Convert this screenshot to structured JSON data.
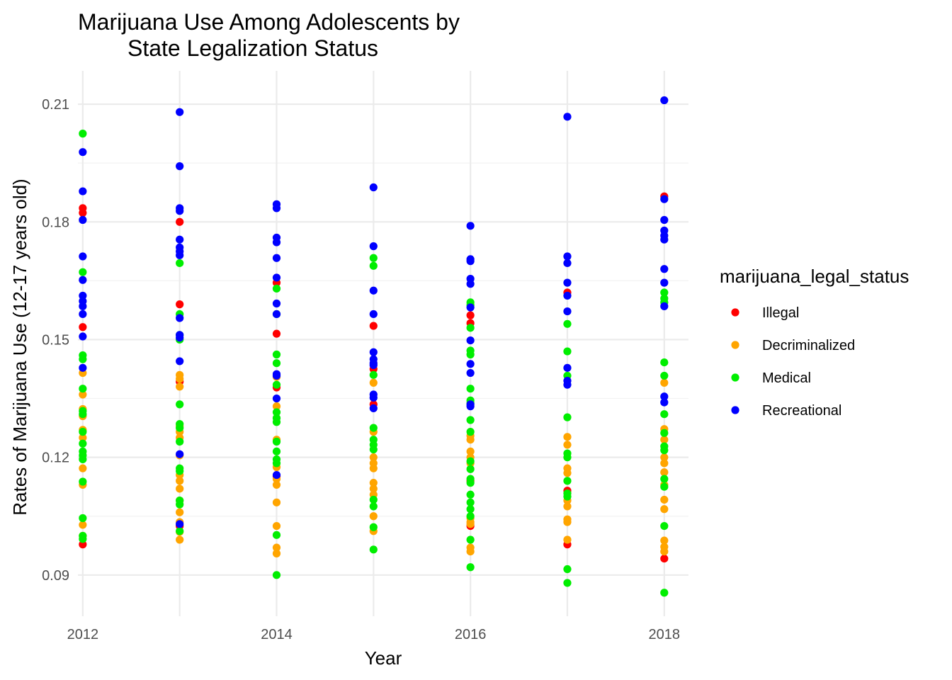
{
  "chart_data": {
    "type": "scatter",
    "title": "Marijuana Use Among Adolescents by\nState Legalization Status",
    "xlabel": "Year",
    "ylabel": "Rates of Marijuana Use (12-17 years old)",
    "xlim": [
      2011.95,
      2018.25
    ],
    "ylim": [
      0.0795,
      0.2185
    ],
    "x_ticks": [
      2012,
      2014,
      2016,
      2018
    ],
    "y_ticks": [
      0.09,
      0.12,
      0.15,
      0.18,
      0.21
    ],
    "y_tick_labels": [
      "0.09",
      "0.12",
      "0.15",
      "0.18",
      "0.21"
    ],
    "grid": true,
    "legend": {
      "title": "marijuana_legal_status",
      "placement": "right"
    },
    "series": [
      {
        "name": "Illegal",
        "color": "#ff0000",
        "points": [
          [
            2012,
            0.1835
          ],
          [
            2012,
            0.1823
          ],
          [
            2012,
            0.1532
          ],
          [
            2012,
            0.0978
          ],
          [
            2013,
            0.18
          ],
          [
            2013,
            0.159
          ],
          [
            2013,
            0.1393
          ],
          [
            2013,
            0.1025
          ],
          [
            2014,
            0.1645
          ],
          [
            2014,
            0.1515
          ],
          [
            2014,
            0.1378
          ],
          [
            2014,
            0.1152
          ],
          [
            2015,
            0.1535
          ],
          [
            2015,
            0.1425
          ],
          [
            2015,
            0.1335
          ],
          [
            2016,
            0.1562
          ],
          [
            2016,
            0.1542
          ],
          [
            2016,
            0.114
          ],
          [
            2016,
            0.1025
          ],
          [
            2017,
            0.162
          ],
          [
            2017,
            0.1115
          ],
          [
            2017,
            0.0978
          ],
          [
            2018,
            0.1865
          ],
          [
            2018,
            0.0942
          ]
        ]
      },
      {
        "name": "Decriminalized",
        "color": "#ffa500",
        "points": [
          [
            2012,
            0.1415
          ],
          [
            2012,
            0.136
          ],
          [
            2012,
            0.1323
          ],
          [
            2012,
            0.1305
          ],
          [
            2012,
            0.127
          ],
          [
            2012,
            0.125
          ],
          [
            2012,
            0.1172
          ],
          [
            2012,
            0.113
          ],
          [
            2012,
            0.1028
          ],
          [
            2012,
            0.1
          ],
          [
            2013,
            0.141
          ],
          [
            2013,
            0.14
          ],
          [
            2013,
            0.138
          ],
          [
            2013,
            0.128
          ],
          [
            2013,
            0.1265
          ],
          [
            2013,
            0.125
          ],
          [
            2013,
            0.1205
          ],
          [
            2013,
            0.1155
          ],
          [
            2013,
            0.114
          ],
          [
            2013,
            0.112
          ],
          [
            2013,
            0.109
          ],
          [
            2013,
            0.106
          ],
          [
            2013,
            0.1035
          ],
          [
            2013,
            0.101
          ],
          [
            2013,
            0.099
          ],
          [
            2014,
            0.1405
          ],
          [
            2014,
            0.133
          ],
          [
            2014,
            0.1245
          ],
          [
            2014,
            0.1175
          ],
          [
            2014,
            0.1145
          ],
          [
            2014,
            0.113
          ],
          [
            2014,
            0.1085
          ],
          [
            2014,
            0.1025
          ],
          [
            2014,
            0.097
          ],
          [
            2014,
            0.0955
          ],
          [
            2015,
            0.139
          ],
          [
            2015,
            0.1265
          ],
          [
            2015,
            0.12
          ],
          [
            2015,
            0.1185
          ],
          [
            2015,
            0.1172
          ],
          [
            2015,
            0.1135
          ],
          [
            2015,
            0.112
          ],
          [
            2015,
            0.1105
          ],
          [
            2015,
            0.105
          ],
          [
            2015,
            0.1012
          ],
          [
            2016,
            0.1255
          ],
          [
            2016,
            0.1245
          ],
          [
            2016,
            0.1215
          ],
          [
            2016,
            0.12
          ],
          [
            2016,
            0.1185
          ],
          [
            2016,
            0.1045
          ],
          [
            2016,
            0.1035
          ],
          [
            2016,
            0.103
          ],
          [
            2016,
            0.097
          ],
          [
            2016,
            0.096
          ],
          [
            2017,
            0.1252
          ],
          [
            2017,
            0.1232
          ],
          [
            2017,
            0.1172
          ],
          [
            2017,
            0.116
          ],
          [
            2017,
            0.109
          ],
          [
            2017,
            0.1075
          ],
          [
            2017,
            0.1042
          ],
          [
            2017,
            0.1035
          ],
          [
            2017,
            0.099
          ],
          [
            2018,
            0.139
          ],
          [
            2018,
            0.1272
          ],
          [
            2018,
            0.1245
          ],
          [
            2018,
            0.12
          ],
          [
            2018,
            0.1185
          ],
          [
            2018,
            0.1162
          ],
          [
            2018,
            0.113
          ],
          [
            2018,
            0.1092
          ],
          [
            2018,
            0.1068
          ],
          [
            2018,
            0.0988
          ],
          [
            2018,
            0.0972
          ],
          [
            2018,
            0.096
          ]
        ]
      },
      {
        "name": "Medical",
        "color": "#00ee00",
        "points": [
          [
            2012,
            0.2025
          ],
          [
            2012,
            0.1672
          ],
          [
            2012,
            0.146
          ],
          [
            2012,
            0.145
          ],
          [
            2012,
            0.1375
          ],
          [
            2012,
            0.1318
          ],
          [
            2012,
            0.131
          ],
          [
            2012,
            0.1265
          ],
          [
            2012,
            0.1235
          ],
          [
            2012,
            0.1215
          ],
          [
            2012,
            0.1205
          ],
          [
            2012,
            0.1195
          ],
          [
            2012,
            0.1138
          ],
          [
            2012,
            0.1045
          ],
          [
            2012,
            0.1
          ],
          [
            2012,
            0.0992
          ],
          [
            2013,
            0.1695
          ],
          [
            2013,
            0.1565
          ],
          [
            2013,
            0.1512
          ],
          [
            2013,
            0.15
          ],
          [
            2013,
            0.1335
          ],
          [
            2013,
            0.1285
          ],
          [
            2013,
            0.1275
          ],
          [
            2013,
            0.124
          ],
          [
            2013,
            0.1172
          ],
          [
            2013,
            0.1165
          ],
          [
            2013,
            0.109
          ],
          [
            2013,
            0.108
          ],
          [
            2013,
            0.1012
          ],
          [
            2014,
            0.163
          ],
          [
            2014,
            0.1565
          ],
          [
            2014,
            0.1462
          ],
          [
            2014,
            0.144
          ],
          [
            2014,
            0.1385
          ],
          [
            2014,
            0.1315
          ],
          [
            2014,
            0.13
          ],
          [
            2014,
            0.129
          ],
          [
            2014,
            0.124
          ],
          [
            2014,
            0.1215
          ],
          [
            2014,
            0.1195
          ],
          [
            2014,
            0.1185
          ],
          [
            2014,
            0.1002
          ],
          [
            2014,
            0.09
          ],
          [
            2015,
            0.1708
          ],
          [
            2015,
            0.1688
          ],
          [
            2015,
            0.141
          ],
          [
            2015,
            0.1275
          ],
          [
            2015,
            0.1245
          ],
          [
            2015,
            0.1232
          ],
          [
            2015,
            0.122
          ],
          [
            2015,
            0.1092
          ],
          [
            2015,
            0.1075
          ],
          [
            2015,
            0.1022
          ],
          [
            2015,
            0.0965
          ],
          [
            2016,
            0.1595
          ],
          [
            2016,
            0.1588
          ],
          [
            2016,
            0.153
          ],
          [
            2016,
            0.1472
          ],
          [
            2016,
            0.1462
          ],
          [
            2016,
            0.1375
          ],
          [
            2016,
            0.1345
          ],
          [
            2016,
            0.1338
          ],
          [
            2016,
            0.1295
          ],
          [
            2016,
            0.1265
          ],
          [
            2016,
            0.119
          ],
          [
            2016,
            0.117
          ],
          [
            2016,
            0.1145
          ],
          [
            2016,
            0.1135
          ],
          [
            2016,
            0.1105
          ],
          [
            2016,
            0.1085
          ],
          [
            2016,
            0.1068
          ],
          [
            2016,
            0.105
          ],
          [
            2016,
            0.099
          ],
          [
            2016,
            0.092
          ],
          [
            2017,
            0.154
          ],
          [
            2017,
            0.147
          ],
          [
            2017,
            0.1408
          ],
          [
            2017,
            0.1302
          ],
          [
            2017,
            0.121
          ],
          [
            2017,
            0.12
          ],
          [
            2017,
            0.114
          ],
          [
            2017,
            0.1108
          ],
          [
            2017,
            0.11
          ],
          [
            2017,
            0.0915
          ],
          [
            2017,
            0.088
          ],
          [
            2018,
            0.162
          ],
          [
            2018,
            0.1605
          ],
          [
            2018,
            0.1595
          ],
          [
            2018,
            0.1442
          ],
          [
            2018,
            0.1408
          ],
          [
            2018,
            0.131
          ],
          [
            2018,
            0.1262
          ],
          [
            2018,
            0.1228
          ],
          [
            2018,
            0.1218
          ],
          [
            2018,
            0.1145
          ],
          [
            2018,
            0.1125
          ],
          [
            2018,
            0.1025
          ],
          [
            2018,
            0.0855
          ]
        ]
      },
      {
        "name": "Recreational",
        "color": "#0000ff",
        "points": [
          [
            2012,
            0.1978
          ],
          [
            2012,
            0.1878
          ],
          [
            2012,
            0.1805
          ],
          [
            2012,
            0.1712
          ],
          [
            2012,
            0.1652
          ],
          [
            2012,
            0.1612
          ],
          [
            2012,
            0.1598
          ],
          [
            2012,
            0.1585
          ],
          [
            2012,
            0.1565
          ],
          [
            2012,
            0.1508
          ],
          [
            2012,
            0.1428
          ],
          [
            2013,
            0.208
          ],
          [
            2013,
            0.1942
          ],
          [
            2013,
            0.1835
          ],
          [
            2013,
            0.1828
          ],
          [
            2013,
            0.1755
          ],
          [
            2013,
            0.1735
          ],
          [
            2013,
            0.1725
          ],
          [
            2013,
            0.1715
          ],
          [
            2013,
            0.1555
          ],
          [
            2013,
            0.1512
          ],
          [
            2013,
            0.1505
          ],
          [
            2013,
            0.1445
          ],
          [
            2013,
            0.1208
          ],
          [
            2013,
            0.103
          ],
          [
            2014,
            0.1845
          ],
          [
            2014,
            0.1835
          ],
          [
            2014,
            0.176
          ],
          [
            2014,
            0.1748
          ],
          [
            2014,
            0.1708
          ],
          [
            2014,
            0.1658
          ],
          [
            2014,
            0.1592
          ],
          [
            2014,
            0.1565
          ],
          [
            2014,
            0.1412
          ],
          [
            2014,
            0.1408
          ],
          [
            2014,
            0.135
          ],
          [
            2014,
            0.1155
          ],
          [
            2015,
            0.1888
          ],
          [
            2015,
            0.1738
          ],
          [
            2015,
            0.1625
          ],
          [
            2015,
            0.1565
          ],
          [
            2015,
            0.1468
          ],
          [
            2015,
            0.145
          ],
          [
            2015,
            0.144
          ],
          [
            2015,
            0.1435
          ],
          [
            2015,
            0.136
          ],
          [
            2015,
            0.1352
          ],
          [
            2015,
            0.1325
          ],
          [
            2016,
            0.179
          ],
          [
            2016,
            0.1705
          ],
          [
            2016,
            0.17
          ],
          [
            2016,
            0.1655
          ],
          [
            2016,
            0.1642
          ],
          [
            2016,
            0.1582
          ],
          [
            2016,
            0.1498
          ],
          [
            2016,
            0.1438
          ],
          [
            2016,
            0.1415
          ],
          [
            2016,
            0.1335
          ],
          [
            2016,
            0.133
          ],
          [
            2017,
            0.2068
          ],
          [
            2017,
            0.1712
          ],
          [
            2017,
            0.1695
          ],
          [
            2017,
            0.1645
          ],
          [
            2017,
            0.1612
          ],
          [
            2017,
            0.1572
          ],
          [
            2017,
            0.1428
          ],
          [
            2017,
            0.1395
          ],
          [
            2017,
            0.1385
          ],
          [
            2018,
            0.211
          ],
          [
            2018,
            0.1858
          ],
          [
            2018,
            0.1805
          ],
          [
            2018,
            0.1778
          ],
          [
            2018,
            0.1765
          ],
          [
            2018,
            0.1755
          ],
          [
            2018,
            0.168
          ],
          [
            2018,
            0.1645
          ],
          [
            2018,
            0.1585
          ],
          [
            2018,
            0.1355
          ],
          [
            2018,
            0.134
          ]
        ]
      }
    ]
  }
}
